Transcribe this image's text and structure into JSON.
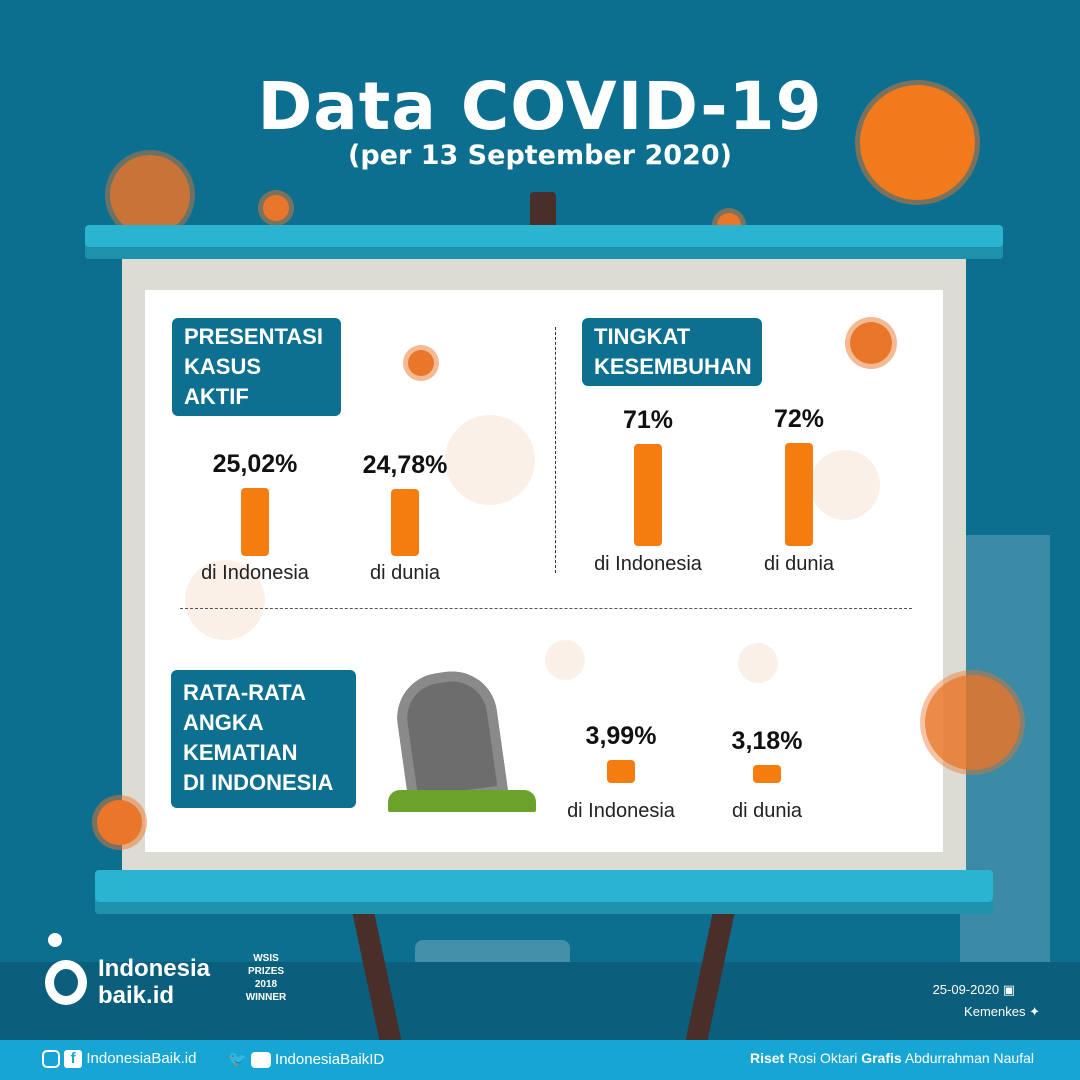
{
  "header": {
    "title": "Data COVID-19",
    "subtitle": "(per 13 September 2020)"
  },
  "sections": {
    "active": {
      "label_line1": "PRESENTASI",
      "label_line2": "KASUS AKTIF"
    },
    "recovery": {
      "label_line1": "TINGKAT",
      "label_line2": "KESEMBUHAN"
    },
    "death": {
      "label_lines": [
        "RATA-RATA",
        "ANGKA",
        "KEMATIAN",
        "DI INDONESIA"
      ]
    }
  },
  "chart_data": [
    {
      "type": "bar",
      "title": "PRESENTASI KASUS AKTIF",
      "categories": [
        "di Indonesia",
        "di dunia"
      ],
      "values": [
        25.02,
        24.78
      ],
      "value_labels": [
        "25,02%",
        "24,78%"
      ]
    },
    {
      "type": "bar",
      "title": "TINGKAT KESEMBUHAN",
      "categories": [
        "di Indonesia",
        "di dunia"
      ],
      "values": [
        71,
        72
      ],
      "value_labels": [
        "71%",
        "72%"
      ]
    },
    {
      "type": "bar",
      "title": "RATA-RATA ANGKA KEMATIAN DI INDONESIA",
      "categories": [
        "di Indonesia",
        "di dunia"
      ],
      "values": [
        3.99,
        3.18
      ],
      "value_labels": [
        "3,99%",
        "3,18%"
      ]
    }
  ],
  "brand": {
    "name_line1": "Indonesia",
    "name_line2": "baik.id",
    "award": "WSIS PRIZES 2018 WINNER"
  },
  "meta": {
    "date": "25-09-2020",
    "source": "Kemenkes"
  },
  "footer": {
    "handle1": "IndonesiaBaik.id",
    "handle2": "IndonesiaBaikID",
    "riset_label": "Riset",
    "riset_name": "Rosi Oktari",
    "grafis_label": "Grafis",
    "grafis_name": "Abdurrahman Naufal"
  },
  "colors": {
    "background": "#0d6f90",
    "bar": "#f57c0e",
    "label_bg": "#0e7090",
    "footer": "#17a6d4"
  }
}
